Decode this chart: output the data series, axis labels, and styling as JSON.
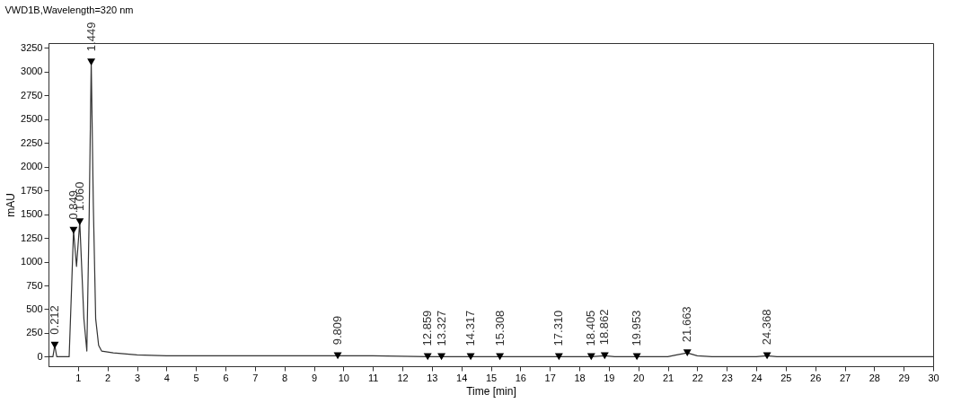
{
  "chart_data": {
    "type": "line",
    "title": "VWD1B,Wavelength=320 nm",
    "xlabel": "Time [min]",
    "ylabel": "mAU",
    "xlim": [
      0,
      30
    ],
    "xticks": [
      1,
      2,
      3,
      4,
      5,
      6,
      7,
      8,
      9,
      10,
      11,
      12,
      13,
      14,
      15,
      16,
      17,
      18,
      19,
      20,
      21,
      22,
      23,
      24,
      25,
      26,
      27,
      28,
      29,
      30
    ],
    "ylim": [
      -100,
      3300
    ],
    "yticks": [
      0,
      250,
      500,
      750,
      1000,
      1250,
      1500,
      1750,
      2000,
      2250,
      2500,
      2750,
      3000,
      3250
    ],
    "grid": false,
    "line_style": "solid",
    "series": [
      {
        "color": "#333333",
        "marker": "none",
        "x": [
          0,
          0.15,
          0.212,
          0.28,
          0.7,
          0.78,
          0.849,
          0.95,
          1.06,
          1.2,
          1.3,
          1.38,
          1.449,
          1.52,
          1.6,
          1.7,
          1.8,
          2.2,
          3,
          4,
          6,
          9,
          9.809,
          11,
          12.859,
          13.327,
          14.317,
          15.308,
          17.31,
          18.405,
          18.862,
          19.2,
          19.953,
          21,
          21.3,
          21.663,
          22,
          22.5,
          24,
          24.368,
          24.7,
          30
        ],
        "values": [
          0,
          0,
          120,
          0,
          0,
          700,
          1330,
          950,
          1420,
          400,
          60,
          1500,
          3100,
          1600,
          400,
          120,
          60,
          40,
          20,
          10,
          10,
          10,
          10,
          10,
          0,
          0,
          0,
          0,
          0,
          0,
          10,
          0,
          0,
          0,
          20,
          40,
          10,
          0,
          0,
          10,
          0,
          0
        ]
      },
      {
        "type": "scatter",
        "color": "#000000",
        "marker": "triangle",
        "x": [
          0.212,
          0.849,
          1.06,
          1.449,
          9.809,
          12.859,
          13.327,
          14.317,
          15.308,
          17.31,
          18.405,
          18.862,
          19.953,
          21.663,
          24.368
        ],
        "values": [
          120,
          1330,
          1420,
          3100,
          10,
          0,
          0,
          0,
          0,
          0,
          0,
          10,
          0,
          40,
          10
        ]
      }
    ],
    "annotations": [
      {
        "text": "0.212",
        "x": 0.212,
        "y": 120
      },
      {
        "text": "0.849",
        "x": 0.849,
        "y": 1330
      },
      {
        "text": "1.060",
        "x": 1.06,
        "y": 1420
      },
      {
        "text": "1.449",
        "x": 1.449,
        "y": 3100
      },
      {
        "text": "9.809",
        "x": 9.809,
        "y": 10
      },
      {
        "text": "12.859",
        "x": 12.859,
        "y": 0
      },
      {
        "text": "13.327",
        "x": 13.327,
        "y": 0
      },
      {
        "text": "14.317",
        "x": 14.317,
        "y": 0
      },
      {
        "text": "15.308",
        "x": 15.308,
        "y": 0
      },
      {
        "text": "17.310",
        "x": 17.31,
        "y": 0
      },
      {
        "text": "18.405",
        "x": 18.405,
        "y": 0
      },
      {
        "text": "18.862",
        "x": 18.862,
        "y": 10
      },
      {
        "text": "19.953",
        "x": 19.953,
        "y": 0
      },
      {
        "text": "21.663",
        "x": 21.663,
        "y": 40
      },
      {
        "text": "24.368",
        "x": 24.368,
        "y": 10
      }
    ]
  }
}
